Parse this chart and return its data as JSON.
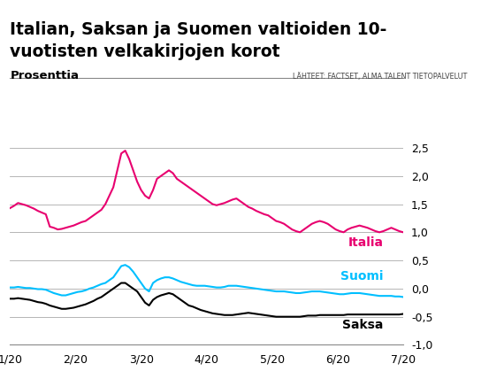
{
  "title_line1": "Italian, Saksan ja Suomen valtioiden 10-",
  "title_line2": "vuotisten velkakirjojen korot",
  "ylabel": "Prosenttia",
  "source": "LÄHTEET: FACTSET, ALMA TALENT TIETOPALVELUT",
  "ylim": [
    -1.0,
    2.5
  ],
  "yticks": [
    -1.0,
    -0.5,
    0.0,
    0.5,
    1.0,
    1.5,
    2.0,
    2.5
  ],
  "xtick_labels": [
    "1/20",
    "2/20",
    "3/20",
    "4/20",
    "5/20",
    "6/20",
    "7/20"
  ],
  "color_italia": "#E8006F",
  "color_suomi": "#00BFFF",
  "color_saksa": "#000000",
  "italia": [
    1.43,
    1.47,
    1.52,
    1.5,
    1.48,
    1.45,
    1.42,
    1.38,
    1.35,
    1.32,
    1.1,
    1.08,
    1.05,
    1.06,
    1.08,
    1.1,
    1.12,
    1.15,
    1.18,
    1.2,
    1.25,
    1.3,
    1.35,
    1.4,
    1.5,
    1.65,
    1.8,
    2.1,
    2.4,
    2.45,
    2.3,
    2.1,
    1.9,
    1.75,
    1.65,
    1.6,
    1.75,
    1.95,
    2.0,
    2.05,
    2.1,
    2.05,
    1.95,
    1.9,
    1.85,
    1.8,
    1.75,
    1.7,
    1.65,
    1.6,
    1.55,
    1.5,
    1.48,
    1.5,
    1.52,
    1.55,
    1.58,
    1.6,
    1.55,
    1.5,
    1.45,
    1.42,
    1.38,
    1.35,
    1.32,
    1.3,
    1.25,
    1.2,
    1.18,
    1.15,
    1.1,
    1.05,
    1.02,
    1.0,
    1.05,
    1.1,
    1.15,
    1.18,
    1.2,
    1.18,
    1.15,
    1.1,
    1.05,
    1.02,
    1.0,
    1.05,
    1.08,
    1.1,
    1.12,
    1.1,
    1.08,
    1.05,
    1.02,
    1.0,
    1.02,
    1.05,
    1.08,
    1.05,
    1.02,
    1.0
  ],
  "suomi": [
    0.02,
    0.02,
    0.03,
    0.02,
    0.01,
    0.01,
    0.0,
    -0.01,
    -0.01,
    -0.02,
    -0.05,
    -0.08,
    -0.1,
    -0.12,
    -0.12,
    -0.1,
    -0.08,
    -0.06,
    -0.05,
    -0.03,
    0.0,
    0.02,
    0.05,
    0.08,
    0.1,
    0.15,
    0.2,
    0.3,
    0.4,
    0.42,
    0.38,
    0.3,
    0.2,
    0.1,
    0.0,
    -0.05,
    0.1,
    0.15,
    0.18,
    0.2,
    0.2,
    0.18,
    0.15,
    0.12,
    0.1,
    0.08,
    0.06,
    0.05,
    0.05,
    0.05,
    0.04,
    0.03,
    0.02,
    0.02,
    0.03,
    0.05,
    0.05,
    0.05,
    0.04,
    0.03,
    0.02,
    0.01,
    0.0,
    -0.01,
    -0.02,
    -0.03,
    -0.04,
    -0.05,
    -0.05,
    -0.05,
    -0.06,
    -0.07,
    -0.08,
    -0.08,
    -0.07,
    -0.06,
    -0.05,
    -0.05,
    -0.05,
    -0.06,
    -0.07,
    -0.08,
    -0.09,
    -0.1,
    -0.1,
    -0.09,
    -0.08,
    -0.08,
    -0.08,
    -0.09,
    -0.1,
    -0.11,
    -0.12,
    -0.13,
    -0.13,
    -0.13,
    -0.13,
    -0.14,
    -0.14,
    -0.15
  ],
  "saksa": [
    -0.18,
    -0.18,
    -0.17,
    -0.18,
    -0.19,
    -0.2,
    -0.22,
    -0.24,
    -0.25,
    -0.27,
    -0.3,
    -0.32,
    -0.34,
    -0.36,
    -0.36,
    -0.35,
    -0.34,
    -0.32,
    -0.3,
    -0.28,
    -0.25,
    -0.22,
    -0.18,
    -0.15,
    -0.1,
    -0.05,
    0.0,
    0.05,
    0.1,
    0.1,
    0.05,
    0.0,
    -0.05,
    -0.15,
    -0.25,
    -0.3,
    -0.2,
    -0.15,
    -0.12,
    -0.1,
    -0.08,
    -0.1,
    -0.15,
    -0.2,
    -0.25,
    -0.3,
    -0.32,
    -0.35,
    -0.38,
    -0.4,
    -0.42,
    -0.44,
    -0.45,
    -0.46,
    -0.47,
    -0.47,
    -0.47,
    -0.46,
    -0.45,
    -0.44,
    -0.43,
    -0.44,
    -0.45,
    -0.46,
    -0.47,
    -0.48,
    -0.49,
    -0.5,
    -0.5,
    -0.5,
    -0.5,
    -0.5,
    -0.5,
    -0.5,
    -0.49,
    -0.48,
    -0.48,
    -0.48,
    -0.47,
    -0.47,
    -0.47,
    -0.47,
    -0.47,
    -0.47,
    -0.47,
    -0.46,
    -0.46,
    -0.46,
    -0.46,
    -0.46,
    -0.46,
    -0.46,
    -0.46,
    -0.46,
    -0.46,
    -0.46,
    -0.46,
    -0.46,
    -0.46,
    -0.45
  ]
}
